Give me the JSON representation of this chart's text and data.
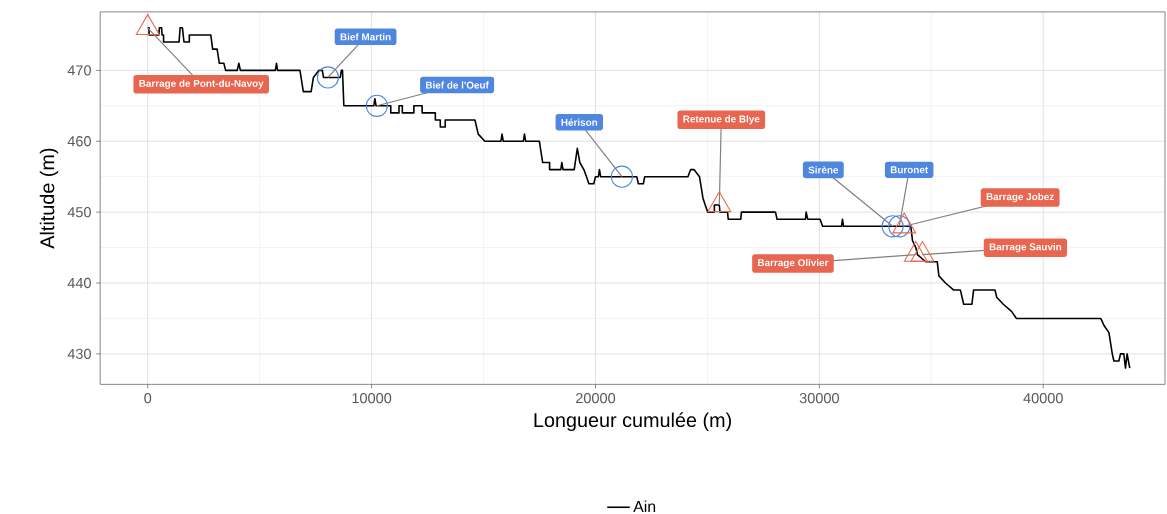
{
  "chart_data": {
    "type": "line",
    "xlabel": "Longueur cumulée (m)",
    "ylabel": "Altitude (m)",
    "xlim": [
      -2124,
      45440
    ],
    "ylim": [
      425.7,
      478.25
    ],
    "xticks": [
      0,
      10000,
      20000,
      30000,
      40000
    ],
    "yticks": [
      430,
      440,
      450,
      460,
      470
    ],
    "grid": true,
    "legend": "bottom",
    "series": [
      {
        "name": "Ain",
        "color": "#000000",
        "marker": "none",
        "line_style": "solid",
        "x": [
          0,
          60,
          60,
          500,
          520,
          620,
          640,
          708,
          708,
          1400,
          1447,
          1550,
          1620,
          1858,
          1858,
          2817,
          2900,
          3100,
          3200,
          3400,
          3481,
          4000,
          4070,
          4140,
          5700,
          5752,
          5800,
          6800,
          6950,
          7300,
          7400,
          7650,
          7800,
          7850,
          8600,
          8650,
          8700,
          8760,
          10100,
          10147,
          10200,
          10856,
          10856,
          11224,
          11224,
          11372,
          11372,
          11888,
          11888,
          12257,
          12257,
          12847,
          12847,
          13068,
          13068,
          13289,
          13289,
          14616,
          14764,
          15059,
          15780,
          15826,
          15880,
          16780,
          16829,
          16880,
          17493,
          17640,
          17950,
          17950,
          18450,
          18496,
          18550,
          19050,
          19189,
          19300,
          19480,
          19600,
          19705,
          19926,
          20000,
          20130,
          20177,
          20230,
          21844,
          21917,
          22139,
          22200,
          24130,
          24250,
          24400,
          24646,
          24800,
          24900,
          25014,
          25310,
          25310,
          25531,
          25560,
          25900,
          25929,
          26490,
          26519,
          28040,
          28112,
          29380,
          29410,
          29480,
          30030,
          30147,
          30990,
          31032,
          31080,
          34085,
          34159,
          34307,
          34381,
          34750,
          35265,
          35339,
          35634,
          36003,
          36300,
          36446,
          36814,
          36888,
          37847,
          37920,
          38215,
          38584,
          38805,
          42566,
          42714,
          42935,
          43083,
          43156,
          43378,
          43451,
          43599,
          43673,
          43746,
          43864
        ],
        "values": [
          476,
          476,
          475,
          475,
          476,
          476,
          475,
          475,
          474,
          474,
          476,
          476,
          474,
          474,
          475,
          475,
          473,
          473,
          471,
          471,
          470,
          470,
          471,
          470,
          470,
          471,
          470,
          470,
          467,
          467,
          469,
          470,
          470,
          469,
          469,
          470,
          470,
          465,
          465,
          466,
          465,
          465,
          464,
          464,
          465,
          465,
          464,
          464,
          465,
          465,
          464,
          464,
          463,
          463,
          462,
          462,
          463,
          463,
          461,
          460,
          460,
          461,
          460,
          460,
          461,
          460,
          460,
          457,
          457,
          456,
          456,
          457,
          456,
          456,
          459,
          457,
          456,
          455,
          454,
          454,
          455,
          455,
          456,
          455,
          455,
          454,
          454,
          455,
          455,
          456,
          456,
          455,
          452,
          451,
          450,
          450,
          451,
          451,
          450,
          450,
          449,
          449,
          450,
          450,
          449,
          449,
          450,
          449,
          449,
          448,
          448,
          449,
          448,
          448,
          446,
          445,
          444,
          443,
          443,
          441,
          440,
          439,
          439,
          437,
          437,
          439,
          439,
          438,
          437,
          436,
          435,
          435,
          434,
          433,
          430,
          429,
          429,
          430,
          430,
          428,
          430,
          428
        ]
      },
      {
        "type": "scatter",
        "color": "#4f86e0",
        "marker": "circle",
        "x": [
          8050,
          10236,
          21180,
          33274,
          33569
        ],
        "values": [
          469,
          465,
          455,
          448,
          448
        ]
      },
      {
        "type": "scatter",
        "color": "#e8664f",
        "marker": "triangle",
        "x": [
          0,
          25531,
          33791,
          34307,
          34602
        ],
        "values": [
          476,
          451,
          448,
          444,
          444
        ]
      }
    ],
    "annotations": [
      {
        "text": "Barrage de Pont-du-Navoy",
        "x": 0,
        "y": 476
      },
      {
        "text": "Bief Martin",
        "x": 8050,
        "y": 469
      },
      {
        "text": "Bief de l'Oeuf",
        "x": 10236,
        "y": 465
      },
      {
        "text": "Hérison",
        "x": 21180,
        "y": 455
      },
      {
        "text": "Retenue de Blye",
        "x": 25531,
        "y": 451
      },
      {
        "text": "Sirène",
        "x": 33274,
        "y": 448
      },
      {
        "text": "Buronet",
        "x": 33569,
        "y": 448
      },
      {
        "text": "Barrage Jobez",
        "x": 33791,
        "y": 448
      },
      {
        "text": "Barrage Olivier",
        "x": 34307,
        "y": 444
      },
      {
        "text": "Barrage Sauvin",
        "x": 34602,
        "y": 444
      }
    ]
  }
}
